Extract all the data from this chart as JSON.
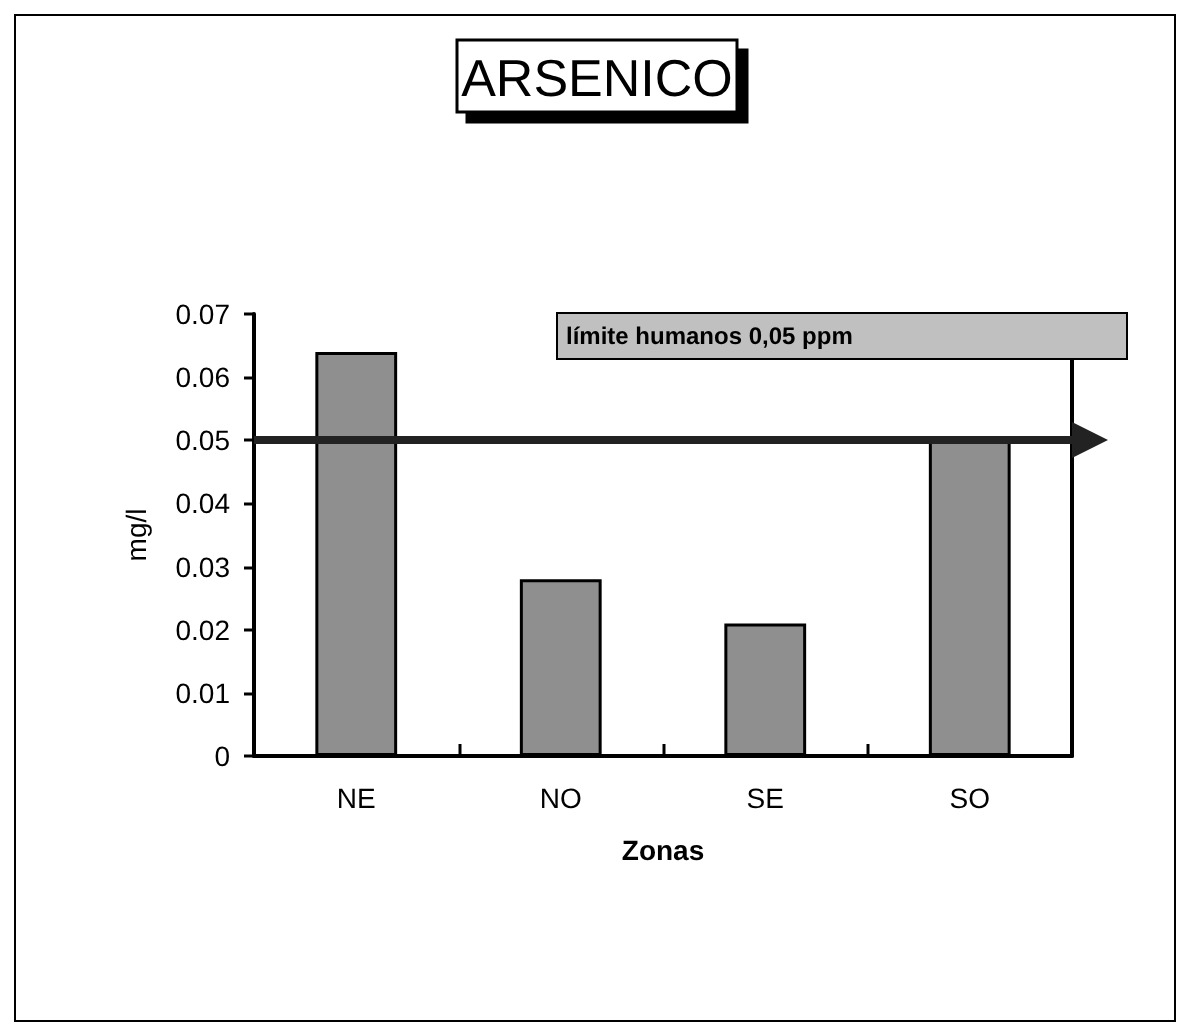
{
  "chart_data": {
    "type": "bar",
    "title": "ARSENICO",
    "xlabel": "Zonas",
    "ylabel": "mg/l",
    "categories": [
      "NE",
      "NO",
      "SE",
      "SO"
    ],
    "values": [
      0.064,
      0.028,
      0.021,
      0.05
    ],
    "color": "#8f8f8f",
    "ylim": [
      0,
      0.07
    ],
    "yticks": [
      0,
      0.01,
      0.02,
      0.03,
      0.04,
      0.05,
      0.06,
      0.07
    ],
    "grid": false,
    "ref_lines": [
      {
        "axis": "y",
        "value": 0.05,
        "label": "límite humanos 0,05 ppm",
        "color": "#222222"
      }
    ]
  }
}
